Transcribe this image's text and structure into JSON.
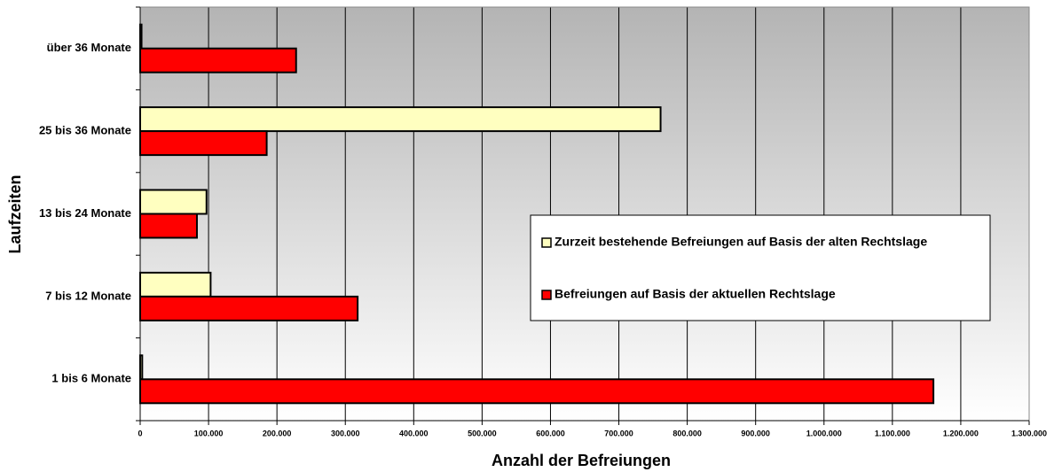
{
  "chart_data": {
    "type": "barh",
    "xlabel": "Anzahl der Befreiungen",
    "ylabel": "Laufzeiten",
    "categories": [
      "1 bis 6 Monate",
      "7 bis 12 Monate",
      "13 bis 24 Monate",
      "25 bis 36 Monate",
      "über 36 Monate"
    ],
    "series": [
      {
        "name": "Zurzeit bestehende Befreiungen auf Basis der alten Rechtslage",
        "color": "#ffffc0",
        "values": [
          3000,
          103000,
          97000,
          761000,
          2000
        ]
      },
      {
        "name": "Befreiungen auf Basis der aktuellen Rechtslage",
        "color": "#ff0000",
        "values": [
          1160000,
          318000,
          83000,
          185000,
          228000
        ]
      }
    ],
    "xlim": [
      0,
      1300000
    ],
    "xticks": [
      0,
      {
        "value": 100000,
        "label": "100.000"
      },
      {
        "value": 200000,
        "label": "200.000"
      },
      {
        "value": 300000,
        "label": "300.000"
      },
      {
        "value": 400000,
        "label": "400.000"
      },
      {
        "value": 500000,
        "label": "500.000"
      },
      {
        "value": 600000,
        "label": "600.000"
      },
      {
        "value": 700000,
        "label": "700.000"
      },
      {
        "value": 800000,
        "label": "800.000"
      },
      {
        "value": 900000,
        "label": "900.000"
      },
      {
        "value": 1000000,
        "label": "1.000.000"
      },
      {
        "value": 1100000,
        "label": "1.100.000"
      },
      {
        "value": 1200000,
        "label": "1.200.000"
      },
      {
        "value": 1300000,
        "label": "1.300.000"
      }
    ],
    "grid": true,
    "legend": "right"
  }
}
